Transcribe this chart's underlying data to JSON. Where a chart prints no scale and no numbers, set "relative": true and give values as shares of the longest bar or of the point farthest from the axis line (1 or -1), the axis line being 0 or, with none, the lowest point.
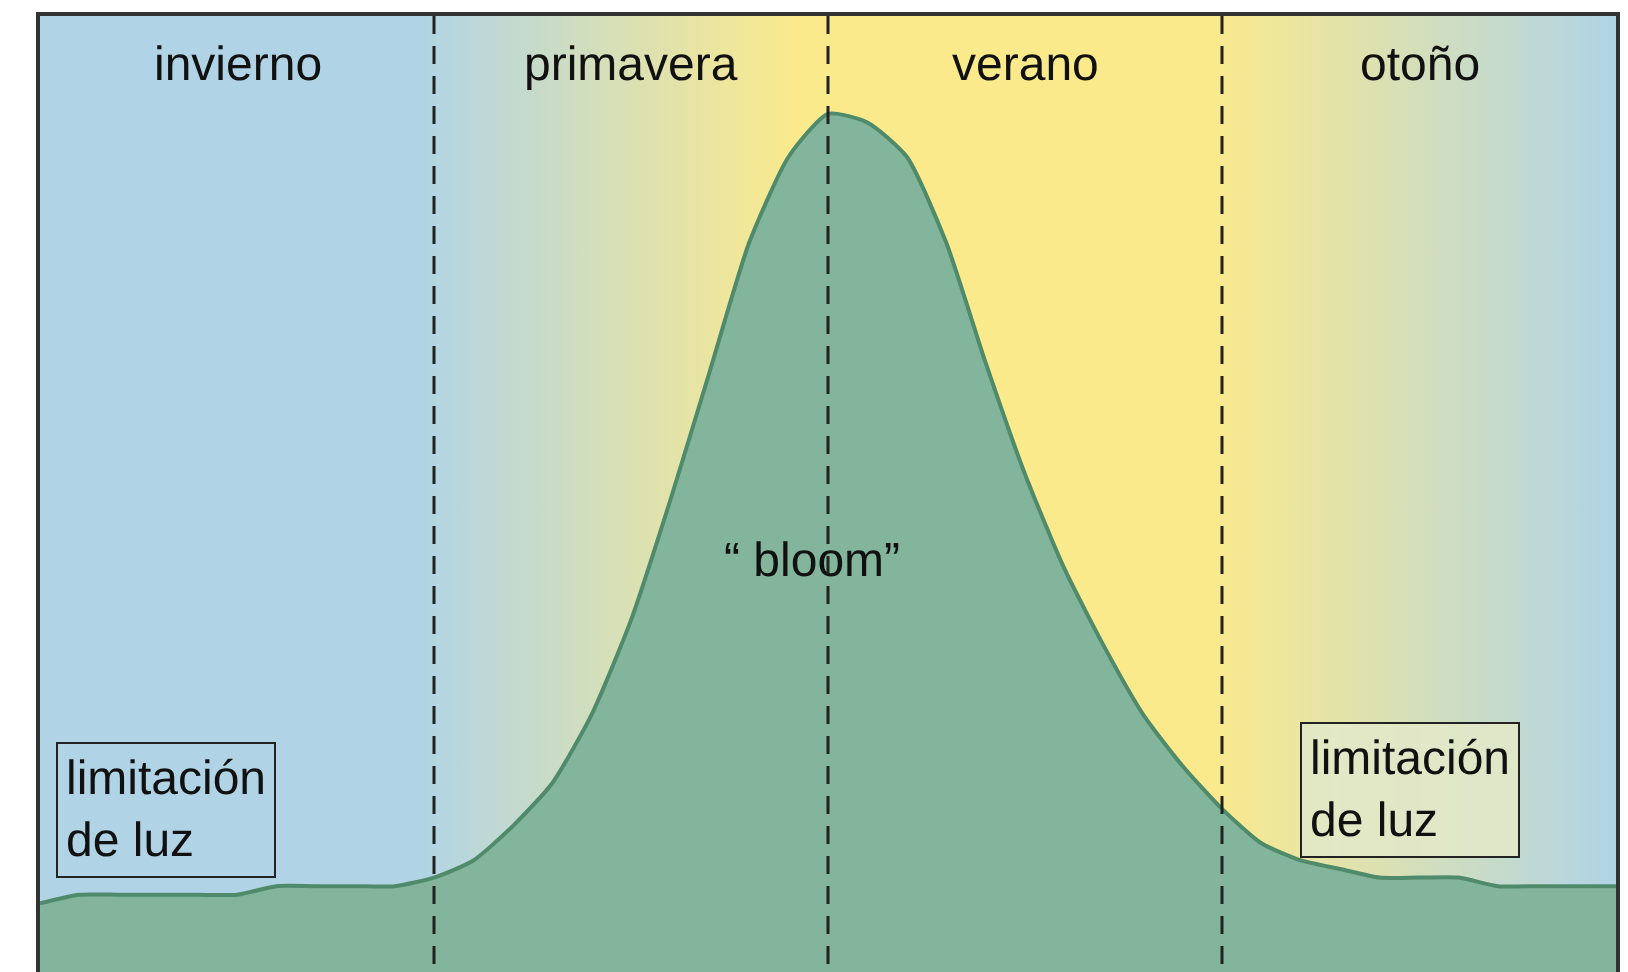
{
  "chart_data": {
    "type": "area",
    "relative": true,
    "categories": [
      null,
      null,
      null,
      null,
      null,
      null,
      null,
      null,
      null,
      null,
      null,
      null,
      null,
      null,
      null,
      null,
      null,
      null,
      null,
      null,
      null,
      null,
      null,
      null,
      null,
      null,
      null,
      null,
      null,
      null,
      null,
      null,
      null,
      null,
      null,
      null,
      null,
      null,
      null,
      null,
      null
    ],
    "series": [
      {
        "color": "#82b59c",
        "values": [
          0.08,
          0.09,
          0.09,
          0.09,
          0.09,
          0.09,
          0.1,
          0.1,
          0.1,
          0.1,
          0.11,
          0.13,
          0.17,
          0.22,
          0.3,
          0.41,
          0.55,
          0.7,
          0.85,
          0.95,
          1.0,
          0.99,
          0.95,
          0.85,
          0.71,
          0.58,
          0.47,
          0.38,
          0.3,
          0.24,
          0.19,
          0.15,
          0.13,
          0.12,
          0.11,
          0.11,
          0.11,
          0.1,
          0.1,
          0.1,
          0.1
        ]
      }
    ],
    "annotations": [
      "invierno",
      "primavera",
      "verano",
      "otoño",
      "“ bloom”",
      "limitación\nde luz",
      "limitación\nde luz"
    ],
    "grid": "x"
  }
}
